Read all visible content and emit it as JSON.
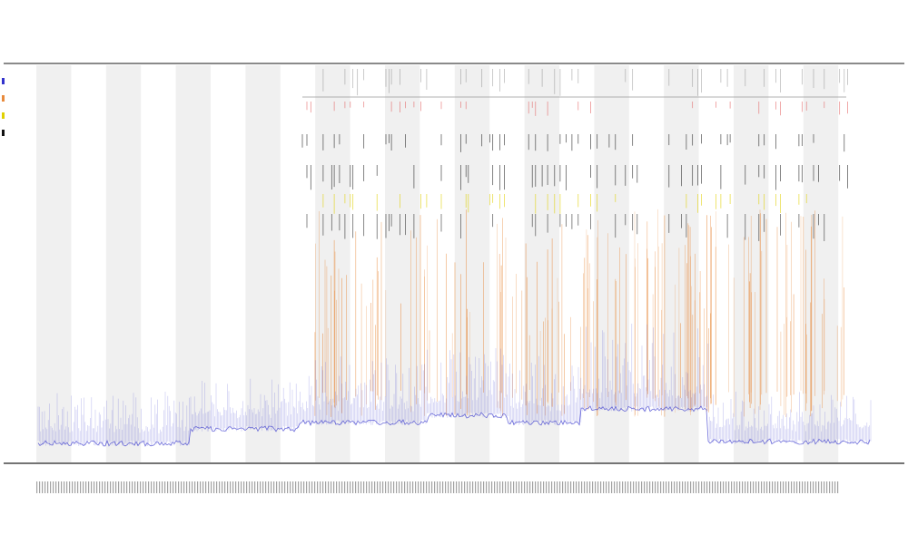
{
  "chart_data": {
    "type": "line",
    "title": "",
    "subtitle_lines": [
      "",
      ""
    ],
    "xlabel": "",
    "ylabel": "",
    "legend_position": "top-left",
    "inner_legend": [],
    "series": [
      {
        "name": "",
        "color": "#3333cc",
        "style": "dense-line"
      },
      {
        "name": "",
        "color": "#e88a3c",
        "style": "vertical-spikes"
      },
      {
        "name": "",
        "color": "#e0d000",
        "style": "marker-row"
      },
      {
        "name": "",
        "color": "#111111",
        "style": "marker-row"
      }
    ],
    "colors": {
      "band": "#f0f0f0",
      "axis": "#444444",
      "red_marker": "#e05050",
      "grey_marker": "#888888"
    },
    "grid": false,
    "background_bands": true,
    "band_count": 12,
    "x_tick_labels_visible": true
  }
}
